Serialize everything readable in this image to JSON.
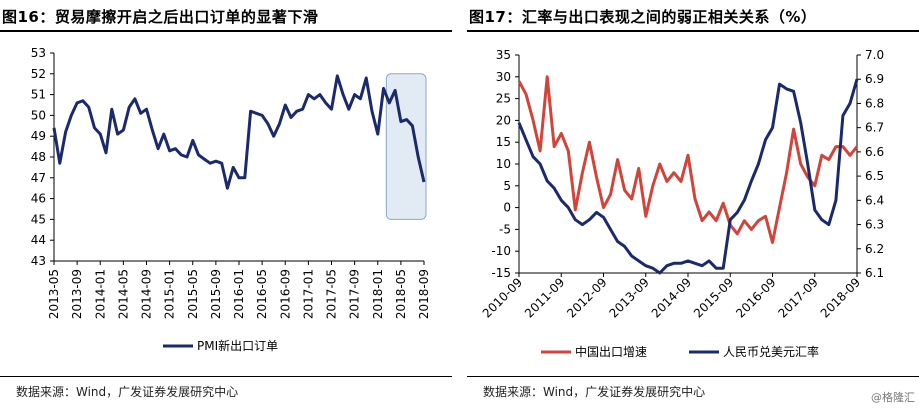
{
  "left": {
    "title": "图16：贸易摩擦开启之后出口订单的显著下滑",
    "source": "数据来源：Wind，广发证券发展研究中心"
  },
  "right": {
    "title": "图17：汇率与出口表现之间的弱正相关关系（%）",
    "source": "数据来源：Wind，广发证券发展研究中心"
  },
  "watermark": "@格隆汇",
  "colors": {
    "navy": "#1a2a6c",
    "red": "#d2433a",
    "shade": "#e2eaf4",
    "shade_border": "#8fa6c8"
  },
  "chart_data": [
    {
      "type": "line",
      "title": "",
      "xlabel": "",
      "ylabel": "",
      "ylim": [
        43,
        53
      ],
      "yticks": [
        43,
        44,
        45,
        46,
        47,
        48,
        49,
        50,
        51,
        52,
        53
      ],
      "xticks": [
        "2013-05",
        "2013-09",
        "2014-01",
        "2014-05",
        "2014-09",
        "2015-01",
        "2015-05",
        "2015-09",
        "2016-01",
        "2016-05",
        "2016-09",
        "2017-01",
        "2017-05",
        "2017-09",
        "2018-01",
        "2018-05",
        "2018-09"
      ],
      "highlight_range": [
        "2018-03",
        "2018-09"
      ],
      "legend": "bottom-center",
      "x": [
        "2013-05",
        "2013-06",
        "2013-07",
        "2013-08",
        "2013-09",
        "2013-10",
        "2013-11",
        "2013-12",
        "2014-01",
        "2014-02",
        "2014-03",
        "2014-04",
        "2014-05",
        "2014-06",
        "2014-07",
        "2014-08",
        "2014-09",
        "2014-10",
        "2014-11",
        "2014-12",
        "2015-01",
        "2015-02",
        "2015-03",
        "2015-04",
        "2015-05",
        "2015-06",
        "2015-07",
        "2015-08",
        "2015-09",
        "2015-10",
        "2015-11",
        "2015-12",
        "2016-01",
        "2016-02",
        "2016-03",
        "2016-04",
        "2016-05",
        "2016-06",
        "2016-07",
        "2016-08",
        "2016-09",
        "2016-10",
        "2016-11",
        "2016-12",
        "2017-01",
        "2017-02",
        "2017-03",
        "2017-04",
        "2017-05",
        "2017-06",
        "2017-07",
        "2017-08",
        "2017-09",
        "2017-10",
        "2017-11",
        "2017-12",
        "2018-01",
        "2018-02",
        "2018-03",
        "2018-04",
        "2018-05",
        "2018-06",
        "2018-07",
        "2018-08",
        "2018-09"
      ],
      "series": [
        {
          "name": "PMI新出口订单",
          "values": [
            49.4,
            47.7,
            49.2,
            50.0,
            50.6,
            50.7,
            50.4,
            49.4,
            49.1,
            48.2,
            50.3,
            49.1,
            49.3,
            50.4,
            50.8,
            50.1,
            50.3,
            49.3,
            48.4,
            49.1,
            48.3,
            48.4,
            48.1,
            48.0,
            48.8,
            48.1,
            47.9,
            47.7,
            47.8,
            47.7,
            46.5,
            47.5,
            47.0,
            47.0,
            50.2,
            50.1,
            50.0,
            49.6,
            49.0,
            49.6,
            50.5,
            49.9,
            50.2,
            50.3,
            51.0,
            50.8,
            51.0,
            50.6,
            50.3,
            51.9,
            51.0,
            50.3,
            51.0,
            50.8,
            51.8,
            50.2,
            49.1,
            51.3,
            50.6,
            51.2,
            49.7,
            49.8,
            49.5,
            48.0,
            46.8
          ]
        }
      ]
    },
    {
      "type": "line",
      "title": "",
      "xlabel": "",
      "ylabel": "",
      "ylim_left": [
        -15,
        35
      ],
      "yticks_left": [
        -15,
        -10,
        -5,
        0,
        5,
        10,
        15,
        20,
        25,
        30,
        35
      ],
      "ylim_right": [
        6.1,
        7.0
      ],
      "yticks_right": [
        "6.1",
        "6.2",
        "6.3",
        "6.4",
        "6.5",
        "6.6",
        "6.7",
        "6.8",
        "6.9",
        "7.0"
      ],
      "xticks": [
        "2010-09",
        "2011-09",
        "2012-09",
        "2013-09",
        "2014-09",
        "2015-09",
        "2016-09",
        "2017-09",
        "2018-09"
      ],
      "legend": "bottom",
      "x": [
        "2010-09",
        "2010-11",
        "2011-01",
        "2011-03",
        "2011-05",
        "2011-07",
        "2011-09",
        "2011-11",
        "2012-01",
        "2012-03",
        "2012-05",
        "2012-07",
        "2012-09",
        "2012-11",
        "2013-01",
        "2013-03",
        "2013-05",
        "2013-07",
        "2013-09",
        "2013-11",
        "2014-01",
        "2014-03",
        "2014-05",
        "2014-07",
        "2014-09",
        "2014-11",
        "2015-01",
        "2015-03",
        "2015-05",
        "2015-07",
        "2015-09",
        "2015-11",
        "2016-01",
        "2016-03",
        "2016-05",
        "2016-07",
        "2016-09",
        "2016-11",
        "2017-01",
        "2017-03",
        "2017-05",
        "2017-07",
        "2017-09",
        "2017-11",
        "2018-01",
        "2018-03",
        "2018-05",
        "2018-07",
        "2018-09"
      ],
      "series": [
        {
          "name": "中国出口增速",
          "axis": "left",
          "color": "#d2433a",
          "values": [
            29,
            26,
            20,
            13,
            30,
            14,
            17,
            13,
            -0.5,
            8,
            15,
            7,
            0,
            3,
            11,
            4,
            2,
            9,
            -2,
            5,
            10,
            6,
            8,
            6,
            12,
            2,
            -3,
            -1,
            -3,
            1,
            -4,
            -6,
            -3,
            -5,
            -3,
            -2,
            -8,
            0,
            8,
            18,
            10,
            7,
            5,
            12,
            11,
            14,
            14,
            12,
            14
          ]
        },
        {
          "name": "人民币兑美元汇率",
          "axis": "right",
          "color": "#1a2a6c",
          "values": [
            6.72,
            6.65,
            6.58,
            6.55,
            6.48,
            6.45,
            6.4,
            6.37,
            6.32,
            6.3,
            6.32,
            6.35,
            6.33,
            6.28,
            6.23,
            6.21,
            6.17,
            6.15,
            6.13,
            6.12,
            6.1,
            6.13,
            6.14,
            6.14,
            6.15,
            6.14,
            6.13,
            6.15,
            6.12,
            6.12,
            6.32,
            6.35,
            6.4,
            6.48,
            6.55,
            6.65,
            6.7,
            6.88,
            6.86,
            6.85,
            6.72,
            6.55,
            6.36,
            6.32,
            6.3,
            6.4,
            6.75,
            6.8,
            6.9
          ]
        }
      ]
    }
  ]
}
